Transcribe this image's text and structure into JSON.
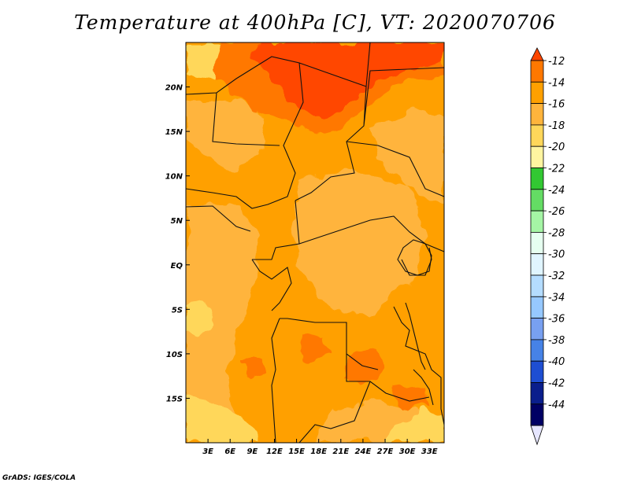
{
  "title": "Temperature at 400hPa [C], VT: 2020070706",
  "credit": "GrADS: IGES/COLA",
  "map": {
    "variable": "Temperature",
    "level": "400hPa",
    "units": "C",
    "valid_time": "2020070706",
    "lon_range": [
      0,
      35
    ],
    "lat_range": [
      -20,
      25
    ],
    "lat_ticks": [
      {
        "value": 20,
        "label": "20N"
      },
      {
        "value": 15,
        "label": "15N"
      },
      {
        "value": 10,
        "label": "10N"
      },
      {
        "value": 5,
        "label": "5N"
      },
      {
        "value": 0,
        "label": "EQ"
      },
      {
        "value": -5,
        "label": "5S"
      },
      {
        "value": -10,
        "label": "10S"
      },
      {
        "value": -15,
        "label": "15S"
      }
    ],
    "lon_ticks": [
      {
        "value": 3,
        "label": "3E"
      },
      {
        "value": 6,
        "label": "6E"
      },
      {
        "value": 9,
        "label": "9E"
      },
      {
        "value": 12,
        "label": "12E"
      },
      {
        "value": 15,
        "label": "15E"
      },
      {
        "value": 18,
        "label": "18E"
      },
      {
        "value": 21,
        "label": "21E"
      },
      {
        "value": 24,
        "label": "24E"
      },
      {
        "value": 27,
        "label": "27E"
      },
      {
        "value": 30,
        "label": "30E"
      },
      {
        "value": 33,
        "label": "33E"
      }
    ],
    "dominant_colors": {
      "warm_region_north": "#ff4600",
      "main": "#ffa000",
      "secondary": "#ffb43c",
      "cool_patches": "#ffd75a"
    }
  },
  "colorbar": {
    "labels": [
      "-12",
      "-14",
      "-16",
      "-18",
      "-20",
      "-22",
      "-24",
      "-26",
      "-28",
      "-30",
      "-32",
      "-34",
      "-36",
      "-38",
      "-40",
      "-42",
      "-44"
    ],
    "colors": [
      "#ff4600",
      "#ff7800",
      "#ffa000",
      "#ffb43c",
      "#ffd75a",
      "#fff5a0",
      "#32c832",
      "#64dc64",
      "#a5f5a5",
      "#e6fff0",
      "#e0f5ff",
      "#b4dcff",
      "#96c8ff",
      "#78a0f0",
      "#4682e6",
      "#1e4ed2",
      "#0a1e8c",
      "#000064",
      "#e6e6ff"
    ]
  }
}
